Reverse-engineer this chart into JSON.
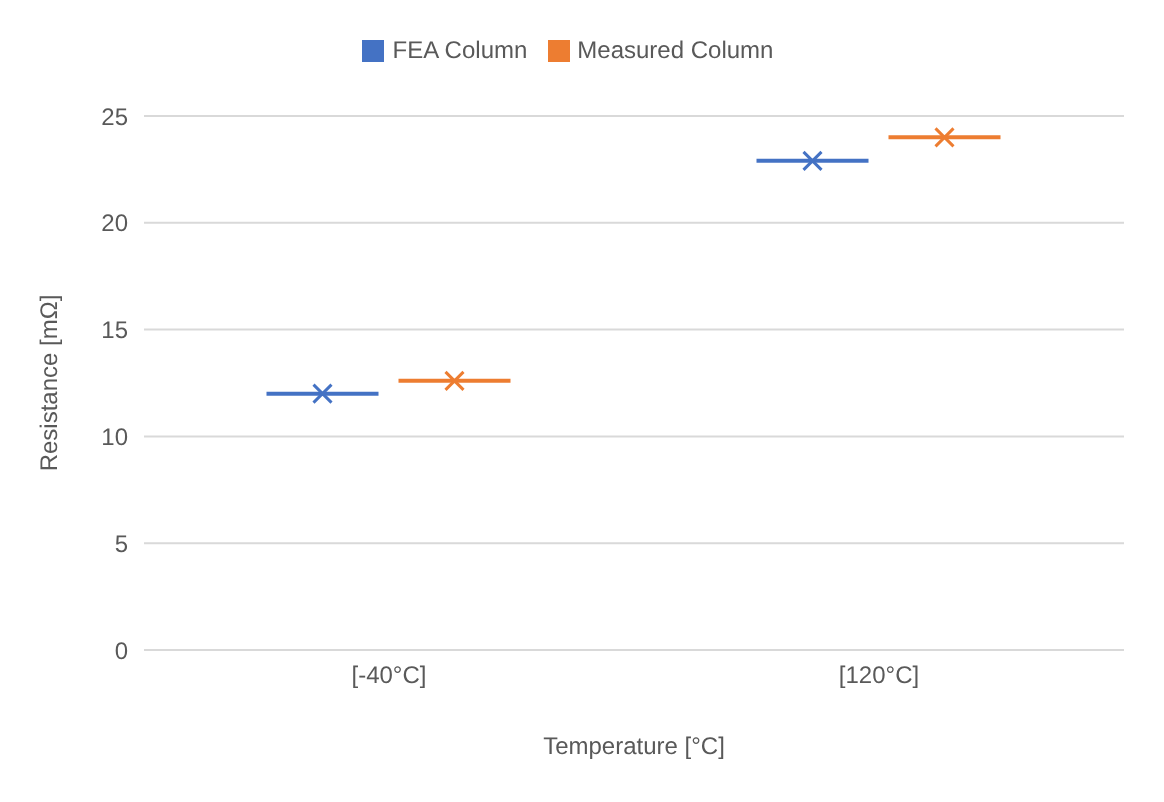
{
  "chart_data": {
    "type": "box",
    "xlabel": "Temperature [°C]",
    "ylabel": "Resistance [mΩ]",
    "categories": [
      "[-40°C]",
      "[120°C]"
    ],
    "series": [
      {
        "name": "FEA Column",
        "color": "#4472c4",
        "boxes": [
          {
            "low": 12,
            "q1": 12,
            "median": 12,
            "q3": 12,
            "high": 12,
            "mean": 12
          },
          {
            "low": 22.9,
            "q1": 22.9,
            "median": 22.9,
            "q3": 22.9,
            "high": 22.9,
            "mean": 22.9
          }
        ]
      },
      {
        "name": "Measured Column",
        "color": "#ed7d31",
        "boxes": [
          {
            "low": 12.6,
            "q1": 12.6,
            "median": 12.6,
            "q3": 12.6,
            "high": 12.6,
            "mean": 12.6
          },
          {
            "low": 24,
            "q1": 24,
            "median": 24,
            "q3": 24,
            "high": 24,
            "mean": 24
          }
        ]
      }
    ],
    "ylim": [
      0,
      25
    ],
    "yticks": [
      0,
      5,
      10,
      15,
      20,
      25
    ],
    "grid": "y",
    "legend": "top",
    "marker": "cross"
  }
}
